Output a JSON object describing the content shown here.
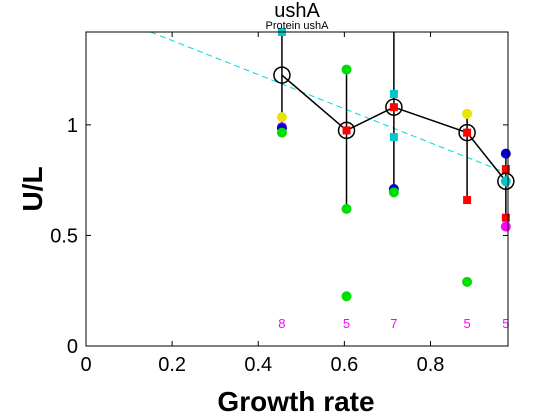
{
  "chart_data": {
    "type": "scatter",
    "title": "ushA",
    "subtitle": "Protein ushA",
    "xlabel": "Growth rate",
    "ylabel": "U/L",
    "xlim": [
      0,
      0.98
    ],
    "ylim": [
      0,
      1.42
    ],
    "xticks": [
      0,
      0.2,
      0.4,
      0.6,
      0.8
    ],
    "xtick_labels": [
      "0",
      "0.2",
      "0.4",
      "0.6",
      "0.8"
    ],
    "yticks": [
      0,
      0.5,
      1
    ],
    "ytick_labels": [
      "0",
      "0.5",
      "1"
    ],
    "grid": false,
    "legend": "none",
    "trend_line": {
      "color": "#00d8d8",
      "style": "dashed",
      "x": [
        0.15,
        0.98
      ],
      "y": [
        1.42,
        0.78
      ]
    },
    "mean_series": {
      "color": "#000000",
      "x": [
        0.455,
        0.605,
        0.715,
        0.885,
        0.975
      ],
      "y": [
        1.225,
        0.975,
        1.08,
        0.965,
        0.745
      ],
      "err_low": [
        0.965,
        0.62,
        0.7,
        0.66,
        0.57
      ],
      "err_high": [
        1.42,
        1.25,
        1.42,
        1.05,
        0.87
      ]
    },
    "replicates": [
      {
        "x": 0.455,
        "y": 1.42,
        "color": "#00c8c8",
        "marker": "square"
      },
      {
        "x": 0.455,
        "y": 1.035,
        "color": "#e6e600",
        "marker": "circle"
      },
      {
        "x": 0.455,
        "y": 0.99,
        "color": "#ff00ff",
        "marker": "circle"
      },
      {
        "x": 0.455,
        "y": 0.985,
        "color": "#0000d0",
        "marker": "circle"
      },
      {
        "x": 0.455,
        "y": 0.965,
        "color": "#00dd00",
        "marker": "circle"
      },
      {
        "x": 0.605,
        "y": 1.25,
        "color": "#00dd00",
        "marker": "circle"
      },
      {
        "x": 0.605,
        "y": 0.975,
        "color": "#ff0000",
        "marker": "square"
      },
      {
        "x": 0.605,
        "y": 0.62,
        "color": "#00dd00",
        "marker": "circle"
      },
      {
        "x": 0.605,
        "y": 0.225,
        "color": "#00dd00",
        "marker": "circle"
      },
      {
        "x": 0.715,
        "y": 1.14,
        "color": "#00c8c8",
        "marker": "square"
      },
      {
        "x": 0.715,
        "y": 1.08,
        "color": "#ff0000",
        "marker": "square"
      },
      {
        "x": 0.715,
        "y": 0.945,
        "color": "#00c8c8",
        "marker": "square"
      },
      {
        "x": 0.715,
        "y": 0.71,
        "color": "#0000d0",
        "marker": "circle"
      },
      {
        "x": 0.715,
        "y": 0.695,
        "color": "#00dd00",
        "marker": "circle"
      },
      {
        "x": 0.885,
        "y": 1.05,
        "color": "#e6e600",
        "marker": "circle"
      },
      {
        "x": 0.885,
        "y": 0.965,
        "color": "#ff0000",
        "marker": "square"
      },
      {
        "x": 0.885,
        "y": 0.66,
        "color": "#ff0000",
        "marker": "square"
      },
      {
        "x": 0.885,
        "y": 0.29,
        "color": "#00dd00",
        "marker": "circle"
      },
      {
        "x": 0.975,
        "y": 0.87,
        "color": "#0000d0",
        "marker": "circle"
      },
      {
        "x": 0.975,
        "y": 0.8,
        "color": "#ff0000",
        "marker": "square"
      },
      {
        "x": 0.975,
        "y": 0.745,
        "color": "#00c8c8",
        "marker": "circle"
      },
      {
        "x": 0.975,
        "y": 0.58,
        "color": "#ff0000",
        "marker": "square"
      },
      {
        "x": 0.975,
        "y": 0.54,
        "color": "#ff00ff",
        "marker": "circle"
      }
    ],
    "counts": {
      "color": "#ff00ff",
      "y": 0.105,
      "items": [
        {
          "x": 0.455,
          "label": "8"
        },
        {
          "x": 0.605,
          "label": "5"
        },
        {
          "x": 0.715,
          "label": "7"
        },
        {
          "x": 0.885,
          "label": "5"
        },
        {
          "x": 0.975,
          "label": "5"
        }
      ]
    }
  }
}
